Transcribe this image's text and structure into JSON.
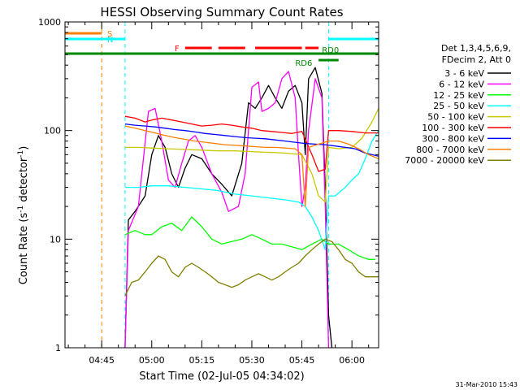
{
  "chart_data": {
    "type": "line",
    "title": "HESSI Observing Summary Count Rates",
    "xlabel": "Start Time (02-Jul-05 04:34:02)",
    "ylabel_main": "Count Rate (s",
    "ylabel_sup1": "-1",
    "ylabel_mid": " detector",
    "ylabel_sup2": "-1",
    "ylabel_end": ")",
    "yscale": "log",
    "xlim": [
      "04:34",
      "06:08"
    ],
    "ylim": [
      1,
      1000
    ],
    "xticks": [
      "04:45",
      "05:00",
      "05:15",
      "05:30",
      "05:45",
      "06:00"
    ],
    "yticks": [
      "1",
      "10",
      "100",
      "1000"
    ],
    "timestamp": "31-Mar-2010 15:43",
    "legend_header": [
      "Det 1,3,4,5,6,9,",
      "FDecim 2, Att 0"
    ],
    "flags": [
      {
        "label": "S",
        "color": "#ff7f00",
        "segments": [
          [
            "04:34",
            "04:45"
          ]
        ]
      },
      {
        "label": "N",
        "color": "#00ffff",
        "segments": [
          [
            "04:34",
            "04:52"
          ],
          [
            "05:53",
            "06:08"
          ]
        ]
      },
      {
        "label": "F",
        "color": "#ff0000",
        "segments": [
          [
            "05:10",
            "05:18"
          ],
          [
            "05:20",
            "05:28"
          ],
          [
            "05:31",
            "05:45"
          ],
          [
            "05:46",
            "05:50"
          ]
        ]
      },
      {
        "label": "RD0",
        "color": "#008800",
        "segments": [
          [
            "04:34",
            "06:08"
          ]
        ]
      },
      {
        "label": "RD6",
        "color": "#008800",
        "segments": [
          [
            "05:50",
            "05:56"
          ]
        ]
      }
    ],
    "vlines": [
      {
        "time": "04:45",
        "color": "#ff7f00"
      },
      {
        "time": "04:52",
        "color": "#00ffff"
      },
      {
        "time": "05:53",
        "color": "#00ffff"
      },
      {
        "time": "06:08",
        "color": "#00ffff"
      }
    ],
    "series": [
      {
        "name": "3 - 6 keV",
        "color": "#000000",
        "points": [
          [
            "04:52",
            1
          ],
          [
            "04:53",
            15
          ],
          [
            "04:55",
            18
          ],
          [
            "04:58",
            25
          ],
          [
            "05:00",
            60
          ],
          [
            "05:02",
            90
          ],
          [
            "05:04",
            70
          ],
          [
            "05:06",
            40
          ],
          [
            "05:08",
            30
          ],
          [
            "05:10",
            45
          ],
          [
            "05:12",
            60
          ],
          [
            "05:15",
            55
          ],
          [
            "05:18",
            40
          ],
          [
            "05:21",
            32
          ],
          [
            "05:24",
            25
          ],
          [
            "05:27",
            50
          ],
          [
            "05:29",
            180
          ],
          [
            "05:31",
            160
          ],
          [
            "05:33",
            200
          ],
          [
            "05:35",
            260
          ],
          [
            "05:37",
            200
          ],
          [
            "05:39",
            160
          ],
          [
            "05:41",
            230
          ],
          [
            "05:43",
            260
          ],
          [
            "05:45",
            180
          ],
          [
            "05:46",
            60
          ],
          [
            "05:47",
            300
          ],
          [
            "05:49",
            380
          ],
          [
            "05:51",
            220
          ],
          [
            "05:52",
            30
          ],
          [
            "05:53",
            2
          ],
          [
            "05:54",
            1
          ]
        ]
      },
      {
        "name": "6 - 12 keV",
        "color": "#ff00ff",
        "points": [
          [
            "04:52",
            1
          ],
          [
            "04:53",
            12
          ],
          [
            "04:56",
            20
          ],
          [
            "04:59",
            150
          ],
          [
            "05:01",
            160
          ],
          [
            "05:03",
            80
          ],
          [
            "05:05",
            35
          ],
          [
            "05:07",
            30
          ],
          [
            "05:09",
            50
          ],
          [
            "05:11",
            80
          ],
          [
            "05:13",
            90
          ],
          [
            "05:15",
            70
          ],
          [
            "05:18",
            40
          ],
          [
            "05:21",
            27
          ],
          [
            "05:23",
            18
          ],
          [
            "05:26",
            20
          ],
          [
            "05:28",
            40
          ],
          [
            "05:30",
            250
          ],
          [
            "05:32",
            280
          ],
          [
            "05:33",
            150
          ],
          [
            "05:35",
            160
          ],
          [
            "05:37",
            180
          ],
          [
            "05:39",
            300
          ],
          [
            "05:41",
            350
          ],
          [
            "05:43",
            200
          ],
          [
            "05:44",
            60
          ],
          [
            "05:45",
            20
          ],
          [
            "05:46",
            30
          ],
          [
            "05:47",
            100
          ],
          [
            "05:49",
            300
          ],
          [
            "05:51",
            200
          ],
          [
            "05:52",
            20
          ],
          [
            "05:53",
            1
          ]
        ]
      },
      {
        "name": "12 - 25 keV",
        "color": "#00ff00",
        "points": [
          [
            "04:52",
            11
          ],
          [
            "04:55",
            12
          ],
          [
            "04:58",
            11
          ],
          [
            "05:00",
            11
          ],
          [
            "05:03",
            13
          ],
          [
            "05:06",
            14
          ],
          [
            "05:09",
            12
          ],
          [
            "05:12",
            16
          ],
          [
            "05:15",
            13
          ],
          [
            "05:18",
            10
          ],
          [
            "05:21",
            9
          ],
          [
            "05:24",
            9.5
          ],
          [
            "05:27",
            10
          ],
          [
            "05:30",
            11
          ],
          [
            "05:33",
            10
          ],
          [
            "05:36",
            9
          ],
          [
            "05:39",
            9
          ],
          [
            "05:42",
            8.5
          ],
          [
            "05:45",
            8
          ],
          [
            "05:48",
            9
          ],
          [
            "05:51",
            10
          ],
          [
            "05:53",
            9
          ],
          [
            "05:56",
            9
          ],
          [
            "05:59",
            8
          ],
          [
            "06:02",
            7
          ],
          [
            "06:05",
            6.5
          ],
          [
            "06:07",
            6.5
          ]
        ]
      },
      {
        "name": "25 - 50 keV",
        "color": "#00ffff",
        "points": [
          [
            "04:52",
            30
          ],
          [
            "04:56",
            30
          ],
          [
            "05:00",
            31
          ],
          [
            "05:05",
            31
          ],
          [
            "05:10",
            30
          ],
          [
            "05:15",
            29
          ],
          [
            "05:20",
            28
          ],
          [
            "05:25",
            26
          ],
          [
            "05:30",
            25
          ],
          [
            "05:35",
            24
          ],
          [
            "05:40",
            23
          ],
          [
            "05:44",
            22
          ],
          [
            "05:46",
            20
          ],
          [
            "05:48",
            16
          ],
          [
            "05:50",
            12
          ],
          [
            "05:52",
            8
          ],
          [
            "05:53",
            25
          ],
          [
            "05:55",
            25
          ],
          [
            "05:58",
            30
          ],
          [
            "06:00",
            35
          ],
          [
            "06:02",
            40
          ],
          [
            "06:04",
            55
          ],
          [
            "06:06",
            80
          ],
          [
            "06:08",
            100
          ]
        ]
      },
      {
        "name": "50 - 100 keV",
        "color": "#c8c800",
        "points": [
          [
            "04:52",
            70
          ],
          [
            "04:56",
            70
          ],
          [
            "05:00",
            69
          ],
          [
            "05:05",
            68
          ],
          [
            "05:10",
            67
          ],
          [
            "05:15",
            66
          ],
          [
            "05:20",
            65
          ],
          [
            "05:25",
            65
          ],
          [
            "05:30",
            64
          ],
          [
            "05:35",
            63
          ],
          [
            "05:40",
            62
          ],
          [
            "05:45",
            60
          ],
          [
            "05:48",
            40
          ],
          [
            "05:50",
            25
          ],
          [
            "05:52",
            22
          ],
          [
            "05:53",
            70
          ],
          [
            "05:56",
            68
          ],
          [
            "06:00",
            70
          ],
          [
            "06:03",
            85
          ],
          [
            "06:06",
            120
          ],
          [
            "06:08",
            160
          ]
        ]
      },
      {
        "name": "100 - 300 keV",
        "color": "#ff0000",
        "points": [
          [
            "04:52",
            135
          ],
          [
            "04:55",
            130
          ],
          [
            "04:58",
            120
          ],
          [
            "05:00",
            125
          ],
          [
            "05:03",
            130
          ],
          [
            "05:06",
            125
          ],
          [
            "05:09",
            120
          ],
          [
            "05:12",
            115
          ],
          [
            "05:15",
            110
          ],
          [
            "05:18",
            112
          ],
          [
            "05:21",
            115
          ],
          [
            "05:24",
            112
          ],
          [
            "05:27",
            108
          ],
          [
            "05:30",
            105
          ],
          [
            "05:33",
            100
          ],
          [
            "05:36",
            98
          ],
          [
            "05:39",
            96
          ],
          [
            "05:42",
            94
          ],
          [
            "05:45",
            98
          ],
          [
            "05:48",
            60
          ],
          [
            "05:50",
            42
          ],
          [
            "05:52",
            44
          ],
          [
            "05:53",
            100
          ],
          [
            "05:56",
            100
          ],
          [
            "06:00",
            98
          ],
          [
            "06:04",
            95
          ],
          [
            "06:08",
            95
          ]
        ]
      },
      {
        "name": "300 - 800 keV",
        "color": "#0000ff",
        "points": [
          [
            "04:52",
            115
          ],
          [
            "04:55",
            112
          ],
          [
            "04:58",
            110
          ],
          [
            "05:01",
            108
          ],
          [
            "05:04",
            105
          ],
          [
            "05:07",
            102
          ],
          [
            "05:10",
            100
          ],
          [
            "05:13",
            97
          ],
          [
            "05:16",
            94
          ],
          [
            "05:19",
            92
          ],
          [
            "05:22",
            90
          ],
          [
            "05:25",
            88
          ],
          [
            "05:28",
            86
          ],
          [
            "05:31",
            85
          ],
          [
            "05:34",
            84
          ],
          [
            "05:37",
            82
          ],
          [
            "05:40",
            80
          ],
          [
            "05:43",
            78
          ],
          [
            "05:46",
            76
          ],
          [
            "05:49",
            75
          ],
          [
            "05:52",
            74
          ],
          [
            "05:55",
            72
          ],
          [
            "05:58",
            70
          ],
          [
            "06:01",
            68
          ],
          [
            "06:04",
            62
          ],
          [
            "06:08",
            58
          ]
        ]
      },
      {
        "name": "800 - 7000 keV",
        "color": "#ff7f00",
        "points": [
          [
            "04:52",
            110
          ],
          [
            "04:55",
            105
          ],
          [
            "04:58",
            100
          ],
          [
            "05:01",
            95
          ],
          [
            "05:04",
            90
          ],
          [
            "05:07",
            86
          ],
          [
            "05:10",
            83
          ],
          [
            "05:13",
            80
          ],
          [
            "05:16",
            78
          ],
          [
            "05:19",
            76
          ],
          [
            "05:22",
            74
          ],
          [
            "05:25",
            73
          ],
          [
            "05:28",
            72
          ],
          [
            "05:31",
            71
          ],
          [
            "05:34",
            70
          ],
          [
            "05:37",
            70
          ],
          [
            "05:40",
            69
          ],
          [
            "05:43",
            68
          ],
          [
            "05:45",
            60
          ],
          [
            "05:46",
            20
          ],
          [
            "05:47",
            70
          ],
          [
            "05:50",
            75
          ],
          [
            "05:53",
            80
          ],
          [
            "05:56",
            80
          ],
          [
            "05:59",
            75
          ],
          [
            "06:02",
            68
          ],
          [
            "06:05",
            60
          ],
          [
            "06:08",
            55
          ]
        ]
      },
      {
        "name": "7000 - 20000 keV",
        "color": "#808000",
        "points": [
          [
            "04:52",
            3
          ],
          [
            "04:54",
            4
          ],
          [
            "04:56",
            4.2
          ],
          [
            "04:58",
            5
          ],
          [
            "05:00",
            6
          ],
          [
            "05:02",
            7
          ],
          [
            "05:04",
            6.5
          ],
          [
            "05:06",
            5
          ],
          [
            "05:08",
            4.5
          ],
          [
            "05:10",
            5.5
          ],
          [
            "05:12",
            6
          ],
          [
            "05:14",
            5.5
          ],
          [
            "05:16",
            5
          ],
          [
            "05:18",
            4.5
          ],
          [
            "05:20",
            4
          ],
          [
            "05:22",
            3.8
          ],
          [
            "05:24",
            3.6
          ],
          [
            "05:26",
            3.8
          ],
          [
            "05:28",
            4.2
          ],
          [
            "05:30",
            4.5
          ],
          [
            "05:32",
            4.8
          ],
          [
            "05:34",
            4.5
          ],
          [
            "05:36",
            4.2
          ],
          [
            "05:38",
            4.5
          ],
          [
            "05:40",
            5
          ],
          [
            "05:42",
            5.5
          ],
          [
            "05:44",
            6
          ],
          [
            "05:46",
            7
          ],
          [
            "05:48",
            8
          ],
          [
            "05:50",
            9
          ],
          [
            "05:52",
            10
          ],
          [
            "05:54",
            9.5
          ],
          [
            "05:56",
            8
          ],
          [
            "05:58",
            6.5
          ],
          [
            "06:00",
            6
          ],
          [
            "06:02",
            5
          ],
          [
            "06:04",
            4.5
          ],
          [
            "06:06",
            4.5
          ],
          [
            "06:08",
            4.5
          ]
        ]
      }
    ]
  }
}
